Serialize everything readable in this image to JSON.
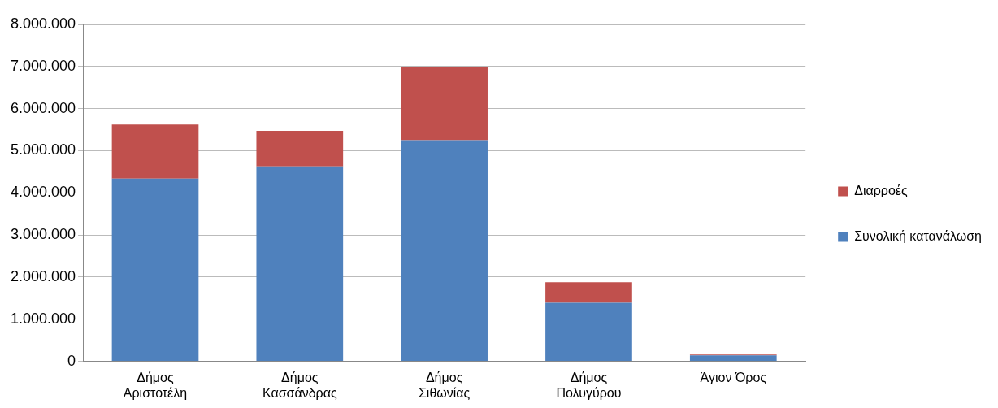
{
  "chart_data": {
    "type": "bar",
    "stacked": true,
    "categories": [
      "Δήμος Αριστοτέλη",
      "Δήμος Κασσάνδρας",
      "Δήμος Σιθωνίας",
      "Δήμος Πολυγύρου",
      "Άγιον Όρος"
    ],
    "series": [
      {
        "name": "Συνολική κατανάλωση",
        "color": "#4f81bd",
        "values": [
          4340000,
          4630000,
          5250000,
          1390000,
          140000
        ]
      },
      {
        "name": "Διαρροές",
        "color": "#c0504d",
        "values": [
          1280000,
          840000,
          1740000,
          490000,
          20000
        ]
      }
    ],
    "ylim": [
      0,
      8000000
    ],
    "yticks": [
      0,
      {
        "value": 1000000,
        "label": "1.000.000"
      },
      {
        "value": 2000000,
        "label": "2.000.000"
      },
      {
        "value": 3000000,
        "label": "3.000.000"
      },
      {
        "value": 4000000,
        "label": "4.000.000"
      },
      {
        "value": 5000000,
        "label": "5.000.000"
      },
      {
        "value": 6000000,
        "label": "6.000.000"
      },
      {
        "value": 7000000,
        "label": "7.000.000"
      },
      {
        "value": 8000000,
        "label": "8.000.000"
      }
    ],
    "grid": "y",
    "legend": "right"
  }
}
